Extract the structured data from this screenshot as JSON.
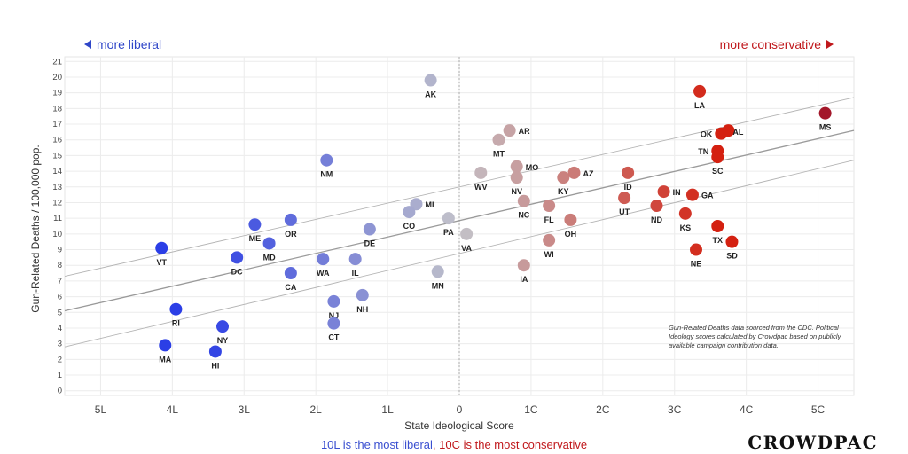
{
  "hints": {
    "left": "more liberal",
    "right": "more conservative"
  },
  "caption": {
    "liberal": "10L is the most liberal",
    "sep": ", ",
    "conservative": "10C is the most conservative"
  },
  "note": "Gun-Related Deaths data sourced from the CDC. Political Ideology scores calculated by Crowdpac based on publicly available campaign contribution data.",
  "brand": "CROWDPAC",
  "colors": {
    "liberal": "#2b3ee6",
    "neutral": "#c3c3c9",
    "conservative": "#d42010",
    "mississippi": "#a3172a"
  },
  "chart_data": {
    "type": "scatter",
    "title": "",
    "xlabel": "State Ideological Score",
    "ylabel": "Gun-Related Deaths / 100,000 pop.",
    "xlim": [
      -5.5,
      5.5
    ],
    "ylim": [
      -0.3,
      21.3
    ],
    "x_ticks": [
      {
        "v": -5,
        "label": "5L"
      },
      {
        "v": -4,
        "label": "4L"
      },
      {
        "v": -3,
        "label": "3L"
      },
      {
        "v": -2,
        "label": "2L"
      },
      {
        "v": -1,
        "label": "1L"
      },
      {
        "v": 0,
        "label": "0"
      },
      {
        "v": 1,
        "label": "1C"
      },
      {
        "v": 2,
        "label": "2C"
      },
      {
        "v": 3,
        "label": "3C"
      },
      {
        "v": 4,
        "label": "4C"
      },
      {
        "v": 5,
        "label": "5C"
      }
    ],
    "y_ticks": [
      0,
      1,
      2,
      3,
      4,
      5,
      6,
      7,
      8,
      9,
      10,
      11,
      12,
      13,
      14,
      15,
      16,
      17,
      18,
      19,
      20,
      21
    ],
    "trend_lines": [
      {
        "name": "fit",
        "points": [
          [
            -5.5,
            5.1
          ],
          [
            5.5,
            16.6
          ]
        ]
      },
      {
        "name": "upper",
        "points": [
          [
            -5.5,
            7.3
          ],
          [
            5.5,
            18.7
          ]
        ]
      },
      {
        "name": "lower",
        "points": [
          [
            -5.5,
            2.8
          ],
          [
            5.5,
            14.7
          ]
        ]
      }
    ],
    "points": [
      {
        "label": "VT",
        "x": -4.15,
        "y": 9.1,
        "pos": "below"
      },
      {
        "label": "RI",
        "x": -3.95,
        "y": 5.2,
        "pos": "below"
      },
      {
        "label": "MA",
        "x": -4.1,
        "y": 2.9,
        "pos": "below"
      },
      {
        "label": "HI",
        "x": -3.4,
        "y": 2.5,
        "pos": "below"
      },
      {
        "label": "NY",
        "x": -3.3,
        "y": 4.1,
        "pos": "below"
      },
      {
        "label": "DC",
        "x": -3.1,
        "y": 8.5,
        "pos": "below"
      },
      {
        "label": "ME",
        "x": -2.85,
        "y": 10.6,
        "pos": "below"
      },
      {
        "label": "MD",
        "x": -2.65,
        "y": 9.4,
        "pos": "below"
      },
      {
        "label": "OR",
        "x": -2.35,
        "y": 10.9,
        "pos": "below"
      },
      {
        "label": "CA",
        "x": -2.35,
        "y": 7.5,
        "pos": "below"
      },
      {
        "label": "WA",
        "x": -1.9,
        "y": 8.4,
        "pos": "below"
      },
      {
        "label": "NM",
        "x": -1.85,
        "y": 14.7,
        "pos": "below"
      },
      {
        "label": "NJ",
        "x": -1.75,
        "y": 5.7,
        "pos": "below"
      },
      {
        "label": "CT",
        "x": -1.75,
        "y": 4.3,
        "pos": "below"
      },
      {
        "label": "IL",
        "x": -1.45,
        "y": 8.4,
        "pos": "below"
      },
      {
        "label": "NH",
        "x": -1.35,
        "y": 6.1,
        "pos": "below"
      },
      {
        "label": "DE",
        "x": -1.25,
        "y": 10.3,
        "pos": "below"
      },
      {
        "label": "MI",
        "x": -0.6,
        "y": 11.9,
        "pos": "right"
      },
      {
        "label": "CO",
        "x": -0.7,
        "y": 11.4,
        "pos": "below"
      },
      {
        "label": "AK",
        "x": -0.4,
        "y": 19.8,
        "pos": "below"
      },
      {
        "label": "MN",
        "x": -0.3,
        "y": 7.6,
        "pos": "below"
      },
      {
        "label": "PA",
        "x": -0.15,
        "y": 11.0,
        "pos": "below"
      },
      {
        "label": "VA",
        "x": 0.1,
        "y": 10.0,
        "pos": "below"
      },
      {
        "label": "WV",
        "x": 0.3,
        "y": 13.9,
        "pos": "below"
      },
      {
        "label": "MT",
        "x": 0.55,
        "y": 16.0,
        "pos": "below"
      },
      {
        "label": "AR",
        "x": 0.7,
        "y": 16.6,
        "pos": "right"
      },
      {
        "label": "MO",
        "x": 0.8,
        "y": 14.3,
        "pos": "right"
      },
      {
        "label": "NV",
        "x": 0.8,
        "y": 13.6,
        "pos": "below"
      },
      {
        "label": "NC",
        "x": 0.9,
        "y": 12.1,
        "pos": "below"
      },
      {
        "label": "IA",
        "x": 0.9,
        "y": 8.0,
        "pos": "below"
      },
      {
        "label": "FL",
        "x": 1.25,
        "y": 11.8,
        "pos": "below"
      },
      {
        "label": "WI",
        "x": 1.25,
        "y": 9.6,
        "pos": "below"
      },
      {
        "label": "KY",
        "x": 1.45,
        "y": 13.6,
        "pos": "below"
      },
      {
        "label": "AZ",
        "x": 1.6,
        "y": 13.9,
        "pos": "right"
      },
      {
        "label": "OH",
        "x": 1.55,
        "y": 10.9,
        "pos": "below"
      },
      {
        "label": "ID",
        "x": 2.35,
        "y": 13.9,
        "pos": "below"
      },
      {
        "label": "UT",
        "x": 2.3,
        "y": 12.3,
        "pos": "below"
      },
      {
        "label": "ND",
        "x": 2.75,
        "y": 11.8,
        "pos": "below"
      },
      {
        "label": "IN",
        "x": 2.85,
        "y": 12.7,
        "pos": "right"
      },
      {
        "label": "GA",
        "x": 3.25,
        "y": 12.5,
        "pos": "right"
      },
      {
        "label": "KS",
        "x": 3.15,
        "y": 11.3,
        "pos": "below"
      },
      {
        "label": "NE",
        "x": 3.3,
        "y": 9.0,
        "pos": "below"
      },
      {
        "label": "LA",
        "x": 3.35,
        "y": 19.1,
        "pos": "below"
      },
      {
        "label": "OK",
        "x": 3.65,
        "y": 16.4,
        "pos": "left"
      },
      {
        "label": "AL",
        "x": 3.75,
        "y": 16.6,
        "pos": "belowright"
      },
      {
        "label": "TN",
        "x": 3.6,
        "y": 15.3,
        "pos": "left"
      },
      {
        "label": "SC",
        "x": 3.6,
        "y": 14.9,
        "pos": "below"
      },
      {
        "label": "TX",
        "x": 3.6,
        "y": 10.5,
        "pos": "below"
      },
      {
        "label": "SD",
        "x": 3.8,
        "y": 9.5,
        "pos": "below"
      },
      {
        "label": "MS",
        "x": 5.1,
        "y": 17.7,
        "pos": "below"
      }
    ]
  }
}
